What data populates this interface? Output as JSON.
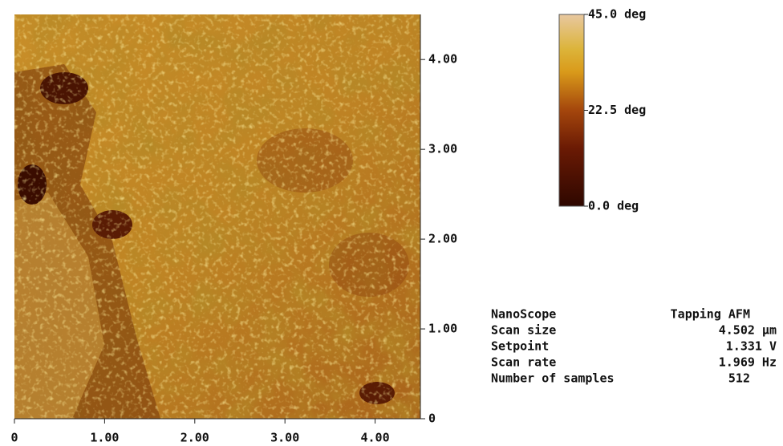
{
  "image": {
    "xlim": [
      0,
      4.502
    ],
    "ylim": [
      0,
      4.502
    ],
    "xticks": [
      0,
      {
        "value": 1,
        "label": "1.00"
      },
      {
        "value": 2,
        "label": "2.00"
      },
      {
        "value": 3,
        "label": "3.00"
      },
      {
        "value": 4,
        "label": "4.00"
      }
    ],
    "yticks": [
      0,
      {
        "value": 1,
        "label": "1.00"
      },
      {
        "value": 2,
        "label": "2.00"
      },
      {
        "value": 3,
        "label": "3.00"
      },
      {
        "value": 4,
        "label": "4.00"
      }
    ]
  },
  "colorbar": {
    "range": [
      0,
      45
    ],
    "ticks": [
      {
        "value": 45,
        "label": "45.0 deg"
      },
      {
        "value": 22.5,
        "label": "22.5 deg"
      },
      {
        "value": 0,
        "label": "0.0 deg"
      }
    ]
  },
  "info": {
    "rows": [
      [
        "NanoScope",
        "Tapping AFM"
      ],
      [
        "Scan size",
        "4.502 μm"
      ],
      [
        "Setpoint",
        "1.331 V"
      ],
      [
        "Scan rate",
        "1.969 Hz"
      ],
      [
        "Number of samples",
        "512"
      ]
    ]
  }
}
